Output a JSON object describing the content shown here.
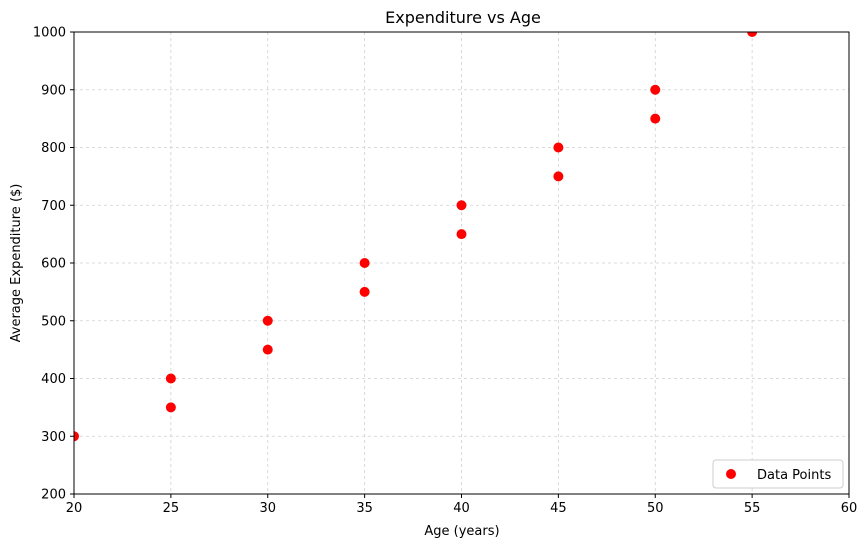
{
  "chart_data": {
    "type": "scatter",
    "title": "Expenditure vs Age",
    "xlabel": "Age (years)",
    "ylabel": "Average Expenditure ($)",
    "xlim": [
      20,
      60
    ],
    "ylim": [
      200,
      1000
    ],
    "xticks": [
      20,
      25,
      30,
      35,
      40,
      45,
      50,
      55,
      60
    ],
    "yticks": [
      200,
      300,
      400,
      500,
      600,
      700,
      800,
      900,
      1000
    ],
    "grid": true,
    "legend_position": "bottom-right",
    "series": [
      {
        "name": "Data Points",
        "color": "#ff0000",
        "points": [
          {
            "x": 20,
            "y": 300
          },
          {
            "x": 25,
            "y": 400
          },
          {
            "x": 25,
            "y": 350
          },
          {
            "x": 30,
            "y": 500
          },
          {
            "x": 30,
            "y": 450
          },
          {
            "x": 35,
            "y": 600
          },
          {
            "x": 35,
            "y": 550
          },
          {
            "x": 40,
            "y": 700
          },
          {
            "x": 40,
            "y": 650
          },
          {
            "x": 45,
            "y": 800
          },
          {
            "x": 45,
            "y": 750
          },
          {
            "x": 50,
            "y": 900
          },
          {
            "x": 50,
            "y": 850
          },
          {
            "x": 55,
            "y": 1000
          }
        ]
      }
    ]
  }
}
